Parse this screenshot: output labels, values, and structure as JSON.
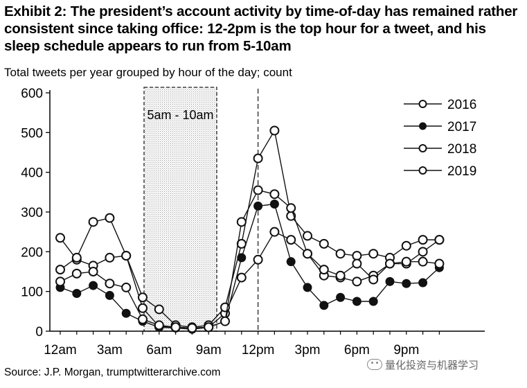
{
  "title": "Exhibit 2: The president’s account activity by time-of-day has remained rather consistent since taking office: 12-2pm is the top hour for a tweet, and his sleep schedule appears to run from 5-10am",
  "subtitle": "Total tweets per year grouped by hour of the day; count",
  "source": "Source: J.P. Morgan, trumptwitterarchive.com",
  "watermark": "量化投资与机器学习",
  "chart_data": {
    "type": "line",
    "x_hours": [
      0,
      1,
      2,
      3,
      4,
      5,
      6,
      7,
      8,
      9,
      10,
      11,
      12,
      13,
      14,
      15,
      16,
      17,
      18,
      19,
      20,
      21,
      22,
      23
    ],
    "x_tick_labels": [
      {
        "hour": 0,
        "label": "12am"
      },
      {
        "hour": 3,
        "label": "3am"
      },
      {
        "hour": 6,
        "label": "6am"
      },
      {
        "hour": 9,
        "label": "9am"
      },
      {
        "hour": 12,
        "label": "12pm"
      },
      {
        "hour": 15,
        "label": "3pm"
      },
      {
        "hour": 18,
        "label": "6pm"
      },
      {
        "hour": 21,
        "label": "9pm"
      }
    ],
    "ylim": [
      0,
      600
    ],
    "y_ticks": [
      0,
      100,
      200,
      300,
      400,
      500,
      600
    ],
    "shaded_region": {
      "from_hour": 5,
      "to_hour": 10,
      "label": "5am - 10am"
    },
    "vertical_marker_hour": 12,
    "series": [
      {
        "name": "2016",
        "values": [
          235,
          180,
          165,
          185,
          190,
          58,
          12,
          10,
          8,
          10,
          45,
          135,
          180,
          250,
          230,
          195,
          140,
          135,
          125,
          140,
          170,
          170,
          200,
          230
        ]
      },
      {
        "name": "2017",
        "values": [
          110,
          95,
          115,
          90,
          45,
          25,
          10,
          8,
          5,
          10,
          25,
          185,
          315,
          320,
          175,
          110,
          65,
          85,
          75,
          75,
          125,
          120,
          122,
          160
        ]
      },
      {
        "name": "2018",
        "values": [
          155,
          185,
          275,
          285,
          190,
          85,
          55,
          15,
          10,
          15,
          60,
          220,
          435,
          505,
          290,
          240,
          220,
          195,
          190,
          195,
          185,
          215,
          230,
          230
        ]
      },
      {
        "name": "2019",
        "values": [
          125,
          145,
          150,
          120,
          110,
          30,
          15,
          10,
          8,
          10,
          25,
          275,
          355,
          345,
          310,
          195,
          155,
          140,
          170,
          130,
          170,
          175,
          175,
          170
        ]
      }
    ]
  }
}
